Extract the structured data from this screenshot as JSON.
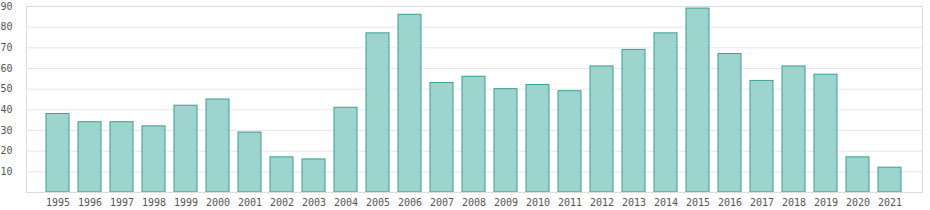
{
  "chart_data": {
    "type": "bar",
    "categories": [
      "1995",
      "1996",
      "1997",
      "1998",
      "1999",
      "2000",
      "2001",
      "2002",
      "2003",
      "2004",
      "2005",
      "2006",
      "2007",
      "2008",
      "2009",
      "2010",
      "2011",
      "2012",
      "2013",
      "2014",
      "2015",
      "2016",
      "2017",
      "2018",
      "2019",
      "2020",
      "2021"
    ],
    "values": [
      38,
      34,
      34,
      32,
      42,
      45,
      29,
      17,
      16,
      41,
      77,
      86,
      53,
      56,
      50,
      52,
      49,
      61,
      69,
      77,
      89,
      67,
      54,
      61,
      57,
      17,
      12
    ],
    "color": "#9dd4ce",
    "ylim": [
      0,
      90
    ],
    "yticks": [
      10,
      20,
      30,
      40,
      50,
      60,
      70,
      80,
      90
    ],
    "grid": true
  }
}
